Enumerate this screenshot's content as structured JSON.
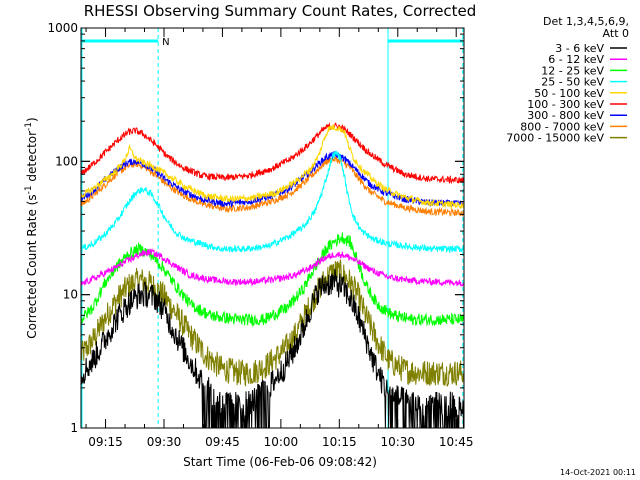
{
  "chart_data": {
    "type": "line",
    "title": "RHESSI Observing Summary Count Rates, Corrected",
    "xlabel": "Start Time (06-Feb-06 09:08:42)",
    "ylabel_main": "Corrected Count Rate (s",
    "ylabel_sup1": "-1",
    "ylabel_mid": " detector",
    "ylabel_sup2": "-1",
    "ylabel_end": ")",
    "y_scale": "log",
    "ylim": [
      1,
      1000
    ],
    "xlim": [
      "09:08:42",
      "10:47:00"
    ],
    "y_ticks": [
      {
        "label": "1",
        "value": 1
      },
      {
        "label": "10",
        "value": 10
      },
      {
        "label": "100",
        "value": 100
      },
      {
        "label": "1000",
        "value": 1000
      }
    ],
    "x_ticks": [
      "09:15",
      "09:30",
      "09:45",
      "10:00",
      "10:15",
      "10:30",
      "10:45"
    ],
    "x_tick_minutes": [
      6.3,
      21.3,
      36.3,
      51.3,
      66.3,
      81.3,
      96.3
    ],
    "legend_header": [
      "Det 1,3,4,5,6,9,",
      "Att 0"
    ],
    "legend_position": "right",
    "night_marker": "N",
    "night_intervals": [
      [
        -0.3,
        19.8
      ],
      [
        78.8,
        98.0
      ]
    ],
    "series": [
      {
        "name": "3 - 6 keV",
        "color": "#000000",
        "x": [
          0,
          3,
          6,
          9,
          12,
          15,
          17,
          19,
          21,
          23,
          26,
          29,
          32,
          36,
          40,
          44,
          48,
          52,
          55,
          57,
          59,
          61,
          63,
          65,
          67,
          69,
          71,
          73,
          75,
          77,
          79,
          83,
          87,
          91,
          95,
          98
        ],
        "values": [
          2.5,
          3.2,
          4.5,
          6.5,
          8.5,
          10,
          10,
          9.5,
          8,
          6,
          4,
          2.8,
          2,
          1.6,
          1.5,
          1.6,
          2,
          2.8,
          4,
          5.5,
          8,
          11,
          12,
          12.5,
          11.5,
          9.5,
          7,
          4.8,
          3.2,
          2.3,
          1.8,
          1.6,
          1.5,
          1.5,
          1.5,
          1.5
        ]
      },
      {
        "name": "6 - 12 keV",
        "color": "#ff00ff",
        "x": [
          0,
          4,
          8,
          12,
          15,
          18,
          21,
          24,
          28,
          33,
          38,
          44,
          50,
          55,
          59,
          62,
          65,
          67,
          69,
          72,
          75,
          79,
          84,
          90,
          98
        ],
        "values": [
          12,
          13.5,
          15.5,
          18,
          20,
          21,
          19,
          16.5,
          14,
          13,
          12.5,
          12.5,
          13,
          14,
          16,
          18.5,
          20,
          20,
          19,
          17,
          15,
          13.5,
          12.8,
          12.5,
          12.3
        ]
      },
      {
        "name": "12 - 25 keV",
        "color": "#00ff00",
        "x": [
          0,
          3,
          6,
          9,
          12,
          15,
          18,
          21,
          24,
          28,
          33,
          40,
          47,
          53,
          57,
          60,
          63,
          65,
          67,
          69,
          71,
          73,
          76,
          80,
          85,
          91,
          98
        ],
        "values": [
          6.5,
          8,
          12,
          16,
          20,
          22,
          20,
          16,
          12,
          8.5,
          7,
          6.5,
          6.5,
          8,
          11,
          16,
          22,
          25,
          27,
          25,
          18,
          12,
          8.5,
          7,
          6.5,
          6.5,
          6.5
        ]
      },
      {
        "name": "25 - 50 keV",
        "color": "#00ffff",
        "x": [
          0,
          3,
          6,
          9,
          12,
          14,
          16,
          18,
          20,
          22,
          24,
          27,
          31,
          36,
          42,
          48,
          53,
          57,
          60,
          62,
          63.5,
          64.5,
          65.5,
          66.5,
          67.5,
          68.5,
          70,
          72,
          75,
          79,
          84,
          90,
          98
        ],
        "values": [
          22,
          24,
          28,
          35,
          48,
          58,
          62,
          57,
          46,
          36,
          30,
          26,
          24,
          22,
          22,
          23,
          27,
          32,
          42,
          60,
          85,
          110,
          115,
          108,
          80,
          55,
          38,
          30,
          26,
          24,
          23,
          22,
          22
        ]
      },
      {
        "name": "50 - 100 keV",
        "color": "#ffd700",
        "x": [
          0,
          3,
          6,
          9,
          11,
          12.5,
          14,
          16,
          19,
          23,
          27,
          32,
          38,
          44,
          50,
          55,
          59,
          61,
          62.5,
          63.5,
          64.5,
          66,
          67.5,
          68.5,
          70,
          72,
          75,
          78,
          82,
          87,
          92,
          98
        ],
        "values": [
          55,
          62,
          72,
          85,
          100,
          125,
          105,
          98,
          90,
          76,
          64,
          55,
          52,
          53,
          58,
          70,
          88,
          110,
          150,
          175,
          180,
          178,
          170,
          135,
          105,
          88,
          72,
          62,
          55,
          50,
          48,
          47
        ]
      },
      {
        "name": "100 - 300 keV",
        "color": "#ff0000",
        "x": [
          0,
          3,
          6,
          9,
          12,
          14,
          16,
          19,
          22,
          26,
          31,
          37,
          43,
          49,
          54,
          58,
          61,
          63,
          65,
          67,
          69,
          71,
          74,
          78,
          83,
          89,
          98
        ],
        "values": [
          80,
          95,
          115,
          140,
          165,
          170,
          160,
          135,
          110,
          90,
          78,
          75,
          78,
          88,
          105,
          130,
          160,
          180,
          185,
          178,
          160,
          140,
          115,
          95,
          80,
          74,
          72
        ]
      },
      {
        "name": "300 - 800 keV",
        "color": "#0000ff",
        "x": [
          0,
          3,
          6,
          9,
          12,
          14,
          16,
          19,
          22,
          26,
          31,
          37,
          43,
          49,
          54,
          58,
          61,
          63,
          65,
          67,
          69,
          71,
          74,
          78,
          83,
          89,
          98
        ],
        "values": [
          52,
          60,
          72,
          86,
          98,
          100,
          96,
          85,
          72,
          60,
          52,
          48,
          50,
          55,
          64,
          80,
          96,
          108,
          112,
          108,
          96,
          84,
          68,
          58,
          52,
          49,
          48
        ]
      },
      {
        "name": "800 - 7000 keV",
        "color": "#ff8000",
        "x": [
          0,
          3,
          6,
          9,
          12,
          14,
          16,
          19,
          22,
          26,
          31,
          37,
          43,
          49,
          54,
          58,
          61,
          63,
          65,
          67,
          69,
          71,
          74,
          78,
          83,
          89,
          98
        ],
        "values": [
          47,
          55,
          66,
          80,
          92,
          96,
          92,
          80,
          67,
          56,
          48,
          44,
          45,
          50,
          58,
          72,
          88,
          100,
          104,
          100,
          90,
          76,
          60,
          50,
          45,
          42,
          41
        ]
      },
      {
        "name": "7000 - 15000 keV",
        "color": "#808000",
        "x": [
          0,
          3,
          6,
          9,
          12,
          15,
          18,
          21,
          24,
          28,
          32,
          36,
          40,
          44,
          48,
          52,
          55,
          58,
          61,
          63,
          65,
          67,
          69,
          71,
          73,
          76,
          79,
          83,
          87,
          91,
          98
        ],
        "values": [
          3.5,
          4.5,
          6.5,
          9,
          11.5,
          13,
          12,
          10,
          7.5,
          5,
          3.5,
          2.8,
          2.6,
          2.6,
          3,
          3.8,
          5,
          7.5,
          11,
          13.5,
          15,
          14.5,
          12.5,
          10,
          7,
          4.5,
          3.2,
          2.7,
          2.6,
          2.6,
          2.6
        ]
      }
    ]
  },
  "footer": {
    "date_stamp": "14-Oct-2021 00:11"
  }
}
